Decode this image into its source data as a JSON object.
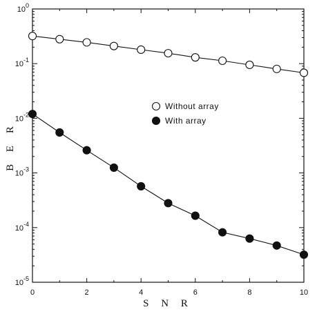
{
  "chart_data": {
    "type": "line",
    "title": "",
    "xlabel": "S N R",
    "ylabel": "B E R",
    "xlim": [
      0,
      10
    ],
    "ylim": [
      1e-05,
      1
    ],
    "yscale": "log",
    "grid": false,
    "legend_position": "center-right",
    "x_ticks": [
      "0",
      "2",
      "4",
      "6",
      "8",
      "10"
    ],
    "y_ticks": [
      {
        "base": "10",
        "exp": "0",
        "value": 1
      },
      {
        "base": "10",
        "exp": "-1",
        "value": 0.1
      },
      {
        "base": "10",
        "exp": "-2",
        "value": 0.01
      },
      {
        "base": "10",
        "exp": "-3",
        "value": 0.001
      },
      {
        "base": "10",
        "exp": "-4",
        "value": 0.0001
      },
      {
        "base": "10",
        "exp": "-5",
        "value": 1e-05
      }
    ],
    "series": [
      {
        "name": "Without array",
        "marker": "open-circle",
        "x": [
          0,
          1,
          2,
          3,
          4,
          5,
          6,
          7,
          8,
          9,
          10
        ],
        "y": [
          0.32,
          0.28,
          0.245,
          0.21,
          0.18,
          0.155,
          0.13,
          0.113,
          0.095,
          0.08,
          0.068
        ]
      },
      {
        "name": "With array",
        "marker": "filled-circle",
        "x": [
          0,
          1,
          2,
          3,
          4,
          5,
          6,
          7,
          8,
          9,
          10
        ],
        "y": [
          0.012,
          0.0055,
          0.0026,
          0.00125,
          0.00057,
          0.00028,
          0.000165,
          8.2e-05,
          6.3e-05,
          4.7e-05,
          3.2e-05
        ]
      }
    ]
  }
}
